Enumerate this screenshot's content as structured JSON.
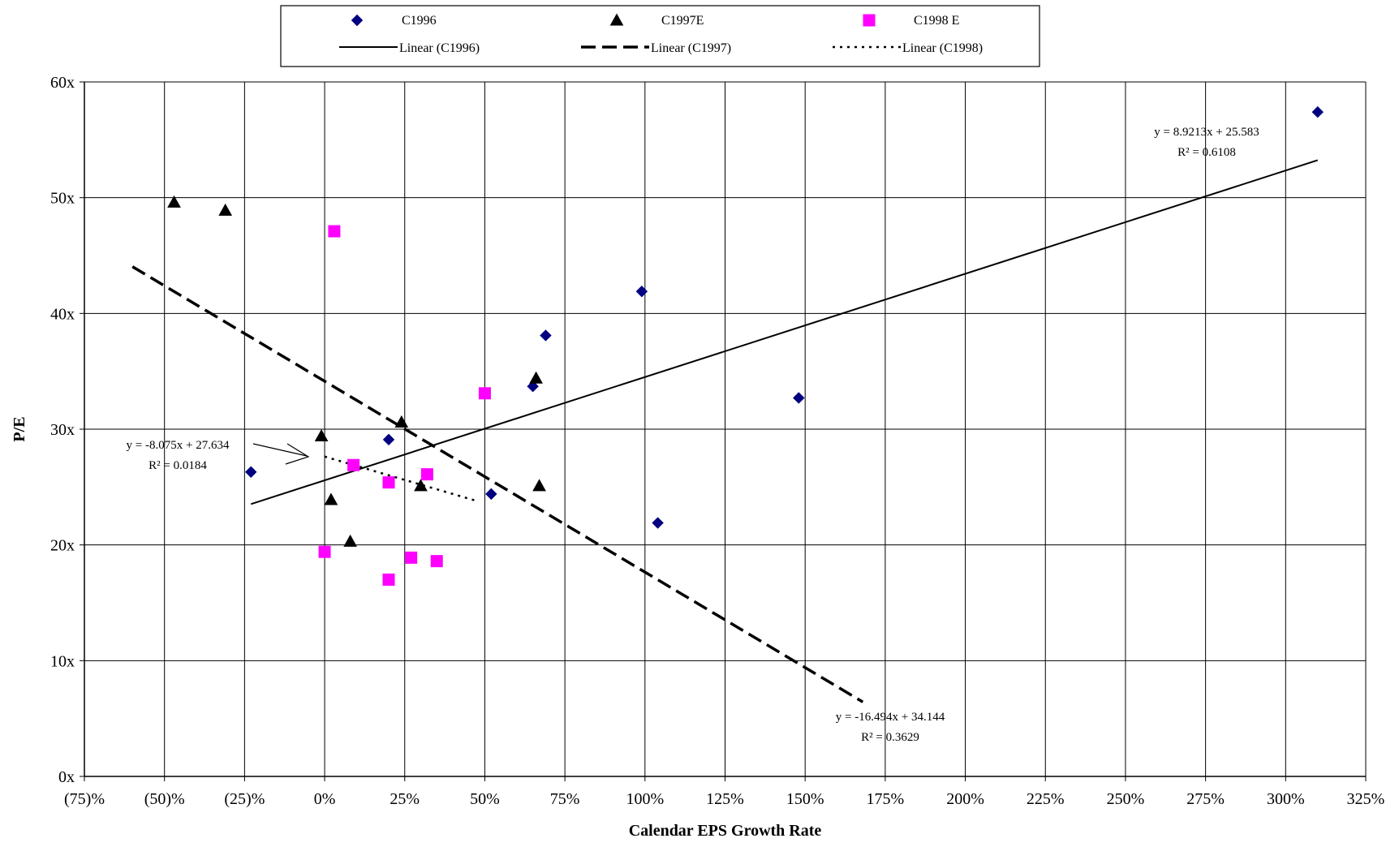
{
  "chart_data": {
    "type": "scatter",
    "title": "",
    "xlabel": "Calendar EPS Growth Rate",
    "ylabel": "P/E",
    "xlim": [
      -0.75,
      3.25
    ],
    "ylim": [
      0,
      60
    ],
    "x_ticks": [
      -0.75,
      -0.5,
      -0.25,
      0,
      0.25,
      0.5,
      0.75,
      1,
      1.25,
      1.5,
      1.75,
      2,
      2.25,
      2.5,
      2.75,
      3,
      3.25
    ],
    "x_tick_labels": [
      "(75)%",
      "(50)%",
      "(25)%",
      "0%",
      "25%",
      "50%",
      "75%",
      "100%",
      "125%",
      "150%",
      "175%",
      "200%",
      "225%",
      "250%",
      "275%",
      "300%",
      "325%"
    ],
    "y_ticks": [
      0,
      10,
      20,
      30,
      40,
      50,
      60
    ],
    "y_tick_labels": [
      "0x",
      "10x",
      "20x",
      "30x",
      "40x",
      "50x",
      "60x"
    ],
    "grid": true,
    "legend_position": "top",
    "series": [
      {
        "name": "C1996",
        "marker": "diamond",
        "color": "#000080",
        "x": [
          -0.23,
          0.2,
          0.52,
          0.65,
          0.69,
          0.99,
          1.04,
          1.48,
          3.1
        ],
        "y": [
          26.3,
          29.1,
          24.4,
          33.7,
          38.1,
          41.9,
          21.9,
          32.7,
          57.4
        ]
      },
      {
        "name": "C1997E",
        "marker": "triangle",
        "color": "#000000",
        "x": [
          -0.47,
          -0.31,
          -0.01,
          0.02,
          0.08,
          0.24,
          0.3,
          0.66,
          0.67
        ],
        "y": [
          49.6,
          48.9,
          29.4,
          23.9,
          20.3,
          30.6,
          25.1,
          34.4,
          25.1
        ]
      },
      {
        "name": "C1998 E",
        "marker": "square",
        "color": "#FF00FF",
        "x": [
          0.0,
          0.03,
          0.09,
          0.2,
          0.2,
          0.27,
          0.32,
          0.35,
          0.5
        ],
        "y": [
          19.4,
          47.1,
          26.9,
          25.4,
          17.0,
          18.9,
          26.1,
          18.6,
          33.1
        ]
      }
    ],
    "trendlines": [
      {
        "name": "Linear (C1996)",
        "style": "solid",
        "slope": 8.9213,
        "intercept": 25.583,
        "x_range": [
          -0.23,
          3.1
        ],
        "equation": "y = 8.9213x + 25.583",
        "r2": "R² = 0.6108"
      },
      {
        "name": "Linear (C1997)",
        "style": "dashed",
        "slope": -16.494,
        "intercept": 34.144,
        "x_range": [
          -0.6,
          1.68
        ],
        "equation": "y = -16.494x + 34.144",
        "r2": "R² = 0.3629"
      },
      {
        "name": "Linear (C1998)",
        "style": "dotted",
        "slope": -8.075,
        "intercept": 27.634,
        "x_range": [
          0.0,
          0.48
        ],
        "equation": "y = -8.075x + 27.634",
        "r2": "R² = 0.0184"
      }
    ]
  }
}
